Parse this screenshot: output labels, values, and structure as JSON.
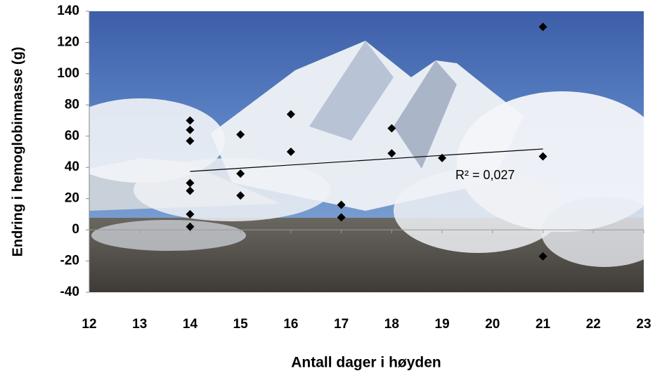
{
  "chart_data": {
    "type": "scatter",
    "xlabel": "Antall dager i høyden",
    "ylabel": "Endring i hemoglobinmasse  (g)",
    "x": [
      14,
      14,
      14,
      14,
      14,
      14,
      14,
      15,
      15,
      15,
      16,
      16,
      17,
      17,
      18,
      18,
      19,
      21,
      21,
      21
    ],
    "values": [
      70,
      64,
      57,
      30,
      25,
      10,
      2,
      61,
      36,
      22,
      74,
      50,
      16,
      8,
      65,
      49,
      46,
      130,
      47,
      -17
    ],
    "color": "#000000",
    "xlim": [
      12,
      23
    ],
    "xticks": [
      12,
      13,
      14,
      15,
      16,
      17,
      18,
      19,
      20,
      21,
      22,
      23
    ],
    "ylim": [
      -40,
      140
    ],
    "yticks": [
      -40,
      -20,
      0,
      20,
      40,
      60,
      80,
      100,
      120,
      140
    ],
    "trendline": {
      "x": [
        14,
        21
      ],
      "y": [
        37.4,
        51.8
      ]
    },
    "annotation": "R² = 0,027"
  }
}
